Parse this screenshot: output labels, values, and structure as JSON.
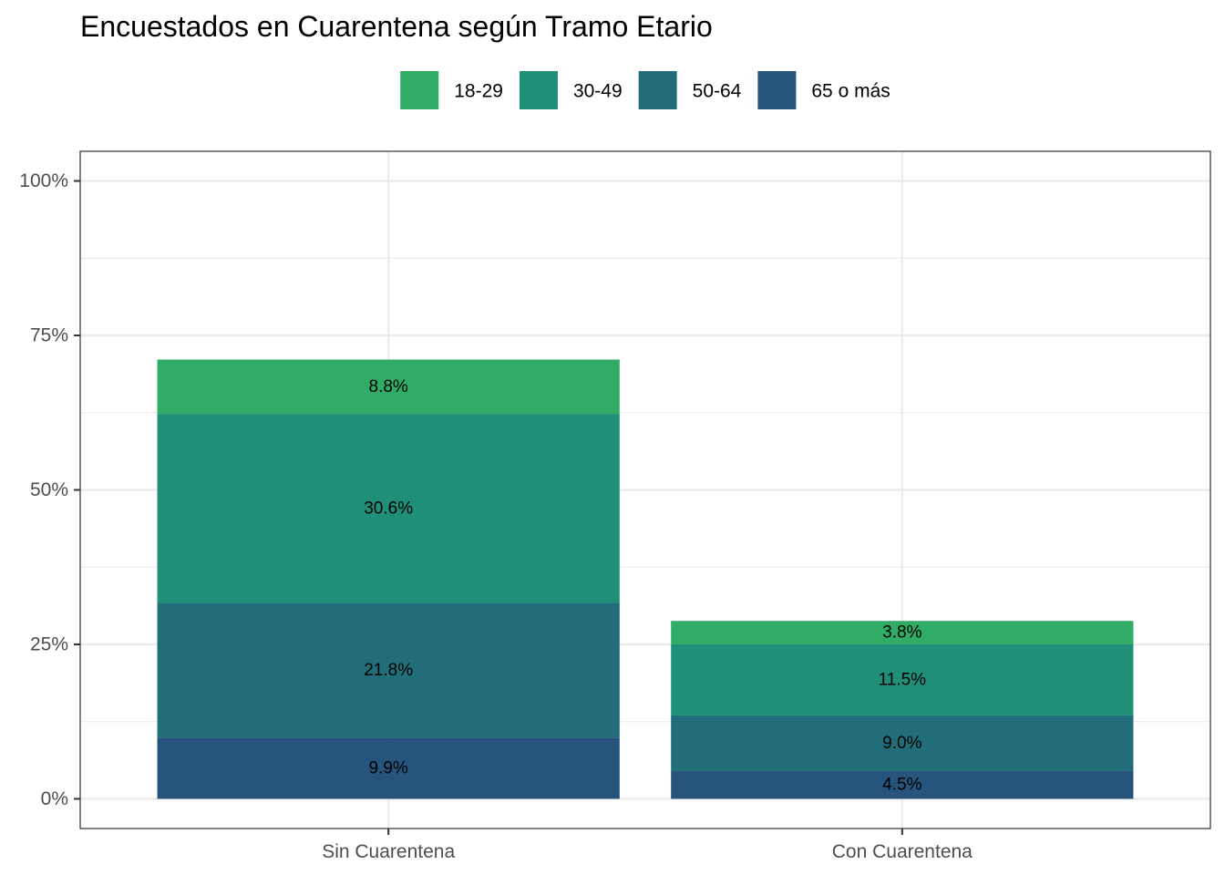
{
  "chart_data": {
    "type": "bar",
    "stacked": true,
    "title": "Encuestados en Cuarentena según Tramo Etario",
    "xlabel": "",
    "ylabel": "",
    "categories": [
      "Sin Cuarentena",
      "Con Cuarentena"
    ],
    "series": [
      {
        "name": "65 o más",
        "values": [
          9.9,
          4.5
        ],
        "labels": [
          "9.9%",
          "4.5%"
        ],
        "color": "#26547c"
      },
      {
        "name": "50-64",
        "values": [
          21.8,
          9.0
        ],
        "labels": [
          "21.8%",
          "9.0%"
        ],
        "color": "#216e7a"
      },
      {
        "name": "30-49",
        "values": [
          30.6,
          11.5
        ],
        "labels": [
          "30.6%",
          "11.5%"
        ],
        "color": "#208f78"
      },
      {
        "name": "18-29",
        "values": [
          8.8,
          3.8
        ],
        "labels": [
          "8.8%",
          "3.8%"
        ],
        "color": "#30ac66"
      }
    ],
    "legend_order": [
      "18-29",
      "30-49",
      "50-64",
      "65 o más"
    ],
    "legend_position": "top",
    "y_ticks": [
      0,
      25,
      50,
      75,
      100
    ],
    "y_tick_labels": [
      "0%",
      "25%",
      "50%",
      "75%",
      "100%"
    ],
    "ylim": [
      -4.8,
      104.8
    ],
    "grid": true,
    "colors": {
      "grid": "#ebebeb",
      "border": "#333333",
      "tick_text": "#4d4d4d"
    }
  }
}
